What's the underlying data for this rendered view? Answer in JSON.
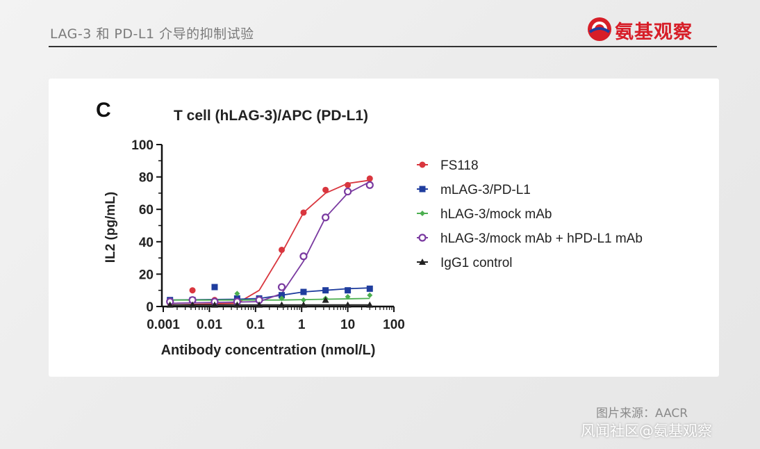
{
  "header": {
    "title": "LAG-3 和 PD-L1 介导的抑制试验",
    "logo_text": "氨基观察"
  },
  "source_label": "图片来源：AACR",
  "watermark": "风闻社区@氨基观察",
  "chart_data": {
    "type": "scatter",
    "panel_letter": "C",
    "title": "T cell (hLAG-3)/APC (PD-L1)",
    "xlabel": "Antibody concentration (nmol/L)",
    "ylabel": "IL2 (pg/mL)",
    "xscale": "log",
    "xlim": [
      0.001,
      100
    ],
    "ylim": [
      0,
      100
    ],
    "xticks": [
      0.001,
      0.01,
      0.1,
      1,
      10,
      100
    ],
    "xtick_labels": [
      "0.001",
      "0.01",
      "0.1",
      "1",
      "10",
      "100"
    ],
    "yticks": [
      0,
      20,
      40,
      60,
      80,
      100
    ],
    "ytick_labels": [
      "0",
      "20",
      "40",
      "60",
      "80",
      "100"
    ],
    "grid": false,
    "legend_position": "right",
    "series": [
      {
        "name": "FS118",
        "color": "#d9363e",
        "marker": "circle",
        "x": [
          0.0014,
          0.0043,
          0.013,
          0.04,
          0.12,
          0.37,
          1.1,
          3.3,
          10,
          30
        ],
        "y": [
          2,
          10,
          4,
          3,
          4,
          35,
          58,
          72,
          75,
          79
        ],
        "fit": [
          [
            0.0014,
            1
          ],
          [
            0.04,
            2
          ],
          [
            0.12,
            10
          ],
          [
            0.37,
            33
          ],
          [
            1.1,
            58
          ],
          [
            3.3,
            70
          ],
          [
            10,
            76
          ],
          [
            30,
            78
          ]
        ]
      },
      {
        "name": "mLAG-3/PD-L1",
        "color": "#1f3d9e",
        "marker": "square",
        "x": [
          0.0014,
          0.0043,
          0.013,
          0.04,
          0.12,
          0.37,
          1.1,
          3.3,
          10,
          30
        ],
        "y": [
          4,
          4,
          12,
          5,
          5,
          7,
          9,
          10,
          10,
          11
        ],
        "fit": [
          [
            0.0014,
            4
          ],
          [
            0.04,
            4.5
          ],
          [
            0.12,
            5
          ],
          [
            0.37,
            7
          ],
          [
            1.1,
            9
          ],
          [
            3.3,
            10
          ],
          [
            10,
            11
          ],
          [
            30,
            11.5
          ]
        ]
      },
      {
        "name": "hLAG-3/mock mAb",
        "color": "#4caf50",
        "marker": "diamond",
        "x": [
          0.0014,
          0.0043,
          0.013,
          0.04,
          0.12,
          0.37,
          1.1,
          3.3,
          10,
          30
        ],
        "y": [
          2,
          3,
          3,
          8,
          5,
          5,
          4,
          5,
          6,
          7
        ],
        "fit": [
          [
            0.0014,
            4
          ],
          [
            0.04,
            4
          ],
          [
            0.37,
            4
          ],
          [
            3.3,
            4.5
          ],
          [
            30,
            5
          ]
        ]
      },
      {
        "name": "hLAG-3/mock mAb + hPD-L1 mAb",
        "color": "#7a3aa0",
        "marker": "circle-open",
        "x": [
          0.0014,
          0.0043,
          0.013,
          0.04,
          0.12,
          0.37,
          1.1,
          3.3,
          10,
          30
        ],
        "y": [
          3,
          4,
          3,
          3,
          4,
          12,
          31,
          55,
          71,
          75
        ],
        "fit": [
          [
            0.0014,
            2
          ],
          [
            0.12,
            3
          ],
          [
            0.37,
            8
          ],
          [
            1.1,
            28
          ],
          [
            3.3,
            55
          ],
          [
            10,
            70
          ],
          [
            30,
            77
          ]
        ]
      },
      {
        "name": "IgG1 control",
        "color": "#222222",
        "marker": "triangle",
        "x": [
          0.0014,
          0.0043,
          0.013,
          0.04,
          0.12,
          0.37,
          1.1,
          3.3,
          10,
          30
        ],
        "y": [
          1,
          1,
          1,
          1,
          1,
          1,
          1,
          4,
          1,
          1
        ],
        "fit": [
          [
            0.0014,
            1
          ],
          [
            1.1,
            1
          ],
          [
            30,
            1
          ]
        ]
      }
    ]
  }
}
